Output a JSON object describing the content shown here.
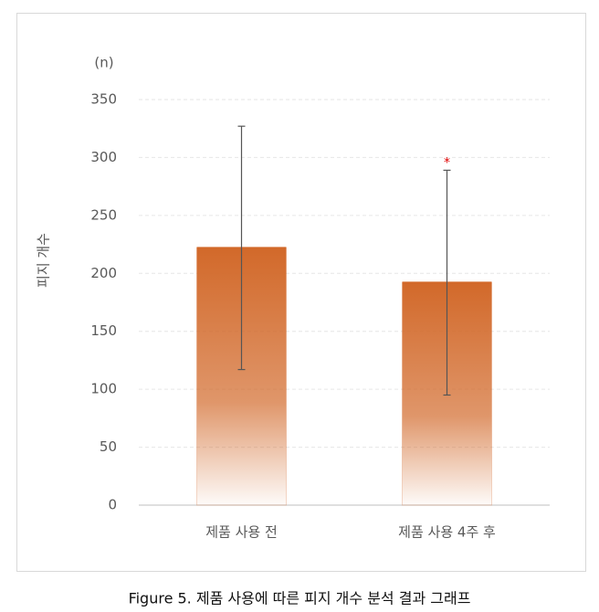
{
  "chart_data": {
    "type": "bar",
    "y_label": "피지 개수",
    "unit_label": "(n)",
    "caption": "Figure 5. 제품 사용에 따른 피지 개수 분석 결과 그래프",
    "categories": [
      "제품 사용 전",
      "제품 사용 4주 후"
    ],
    "values": [
      222,
      192
    ],
    "errors": [
      105,
      97
    ],
    "significance_labels": [
      null,
      "*"
    ],
    "color": "#d2692a",
    "error_color": "#555555",
    "significance_color": "#e00000",
    "ylim": [
      0,
      350
    ],
    "yticks": [
      0,
      50,
      100,
      150,
      200,
      250,
      300,
      350
    ],
    "grid": true
  }
}
